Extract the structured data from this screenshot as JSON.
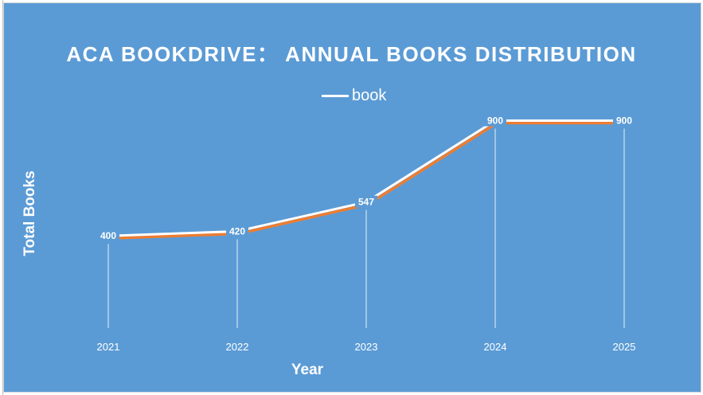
{
  "chart_data": {
    "type": "line",
    "title": "ACA BOOKDRIVE：  ANNUAL BOOKS DISTRIBUTION",
    "xlabel": "Year",
    "ylabel": "Total Books",
    "categories": [
      "2021",
      "2022",
      "2023",
      "2024",
      "2025"
    ],
    "series": [
      {
        "name": "book",
        "values": [
          400,
          420,
          547,
          900,
          900
        ]
      }
    ],
    "ylim": [
      0,
      1100
    ],
    "grid": false,
    "legend_position": "top-center",
    "data_labels": true,
    "colors": {
      "background": "#5b9bd5",
      "line": "#ffffff",
      "line_shadow": "#ed7d31",
      "text": "#ffffff"
    }
  }
}
